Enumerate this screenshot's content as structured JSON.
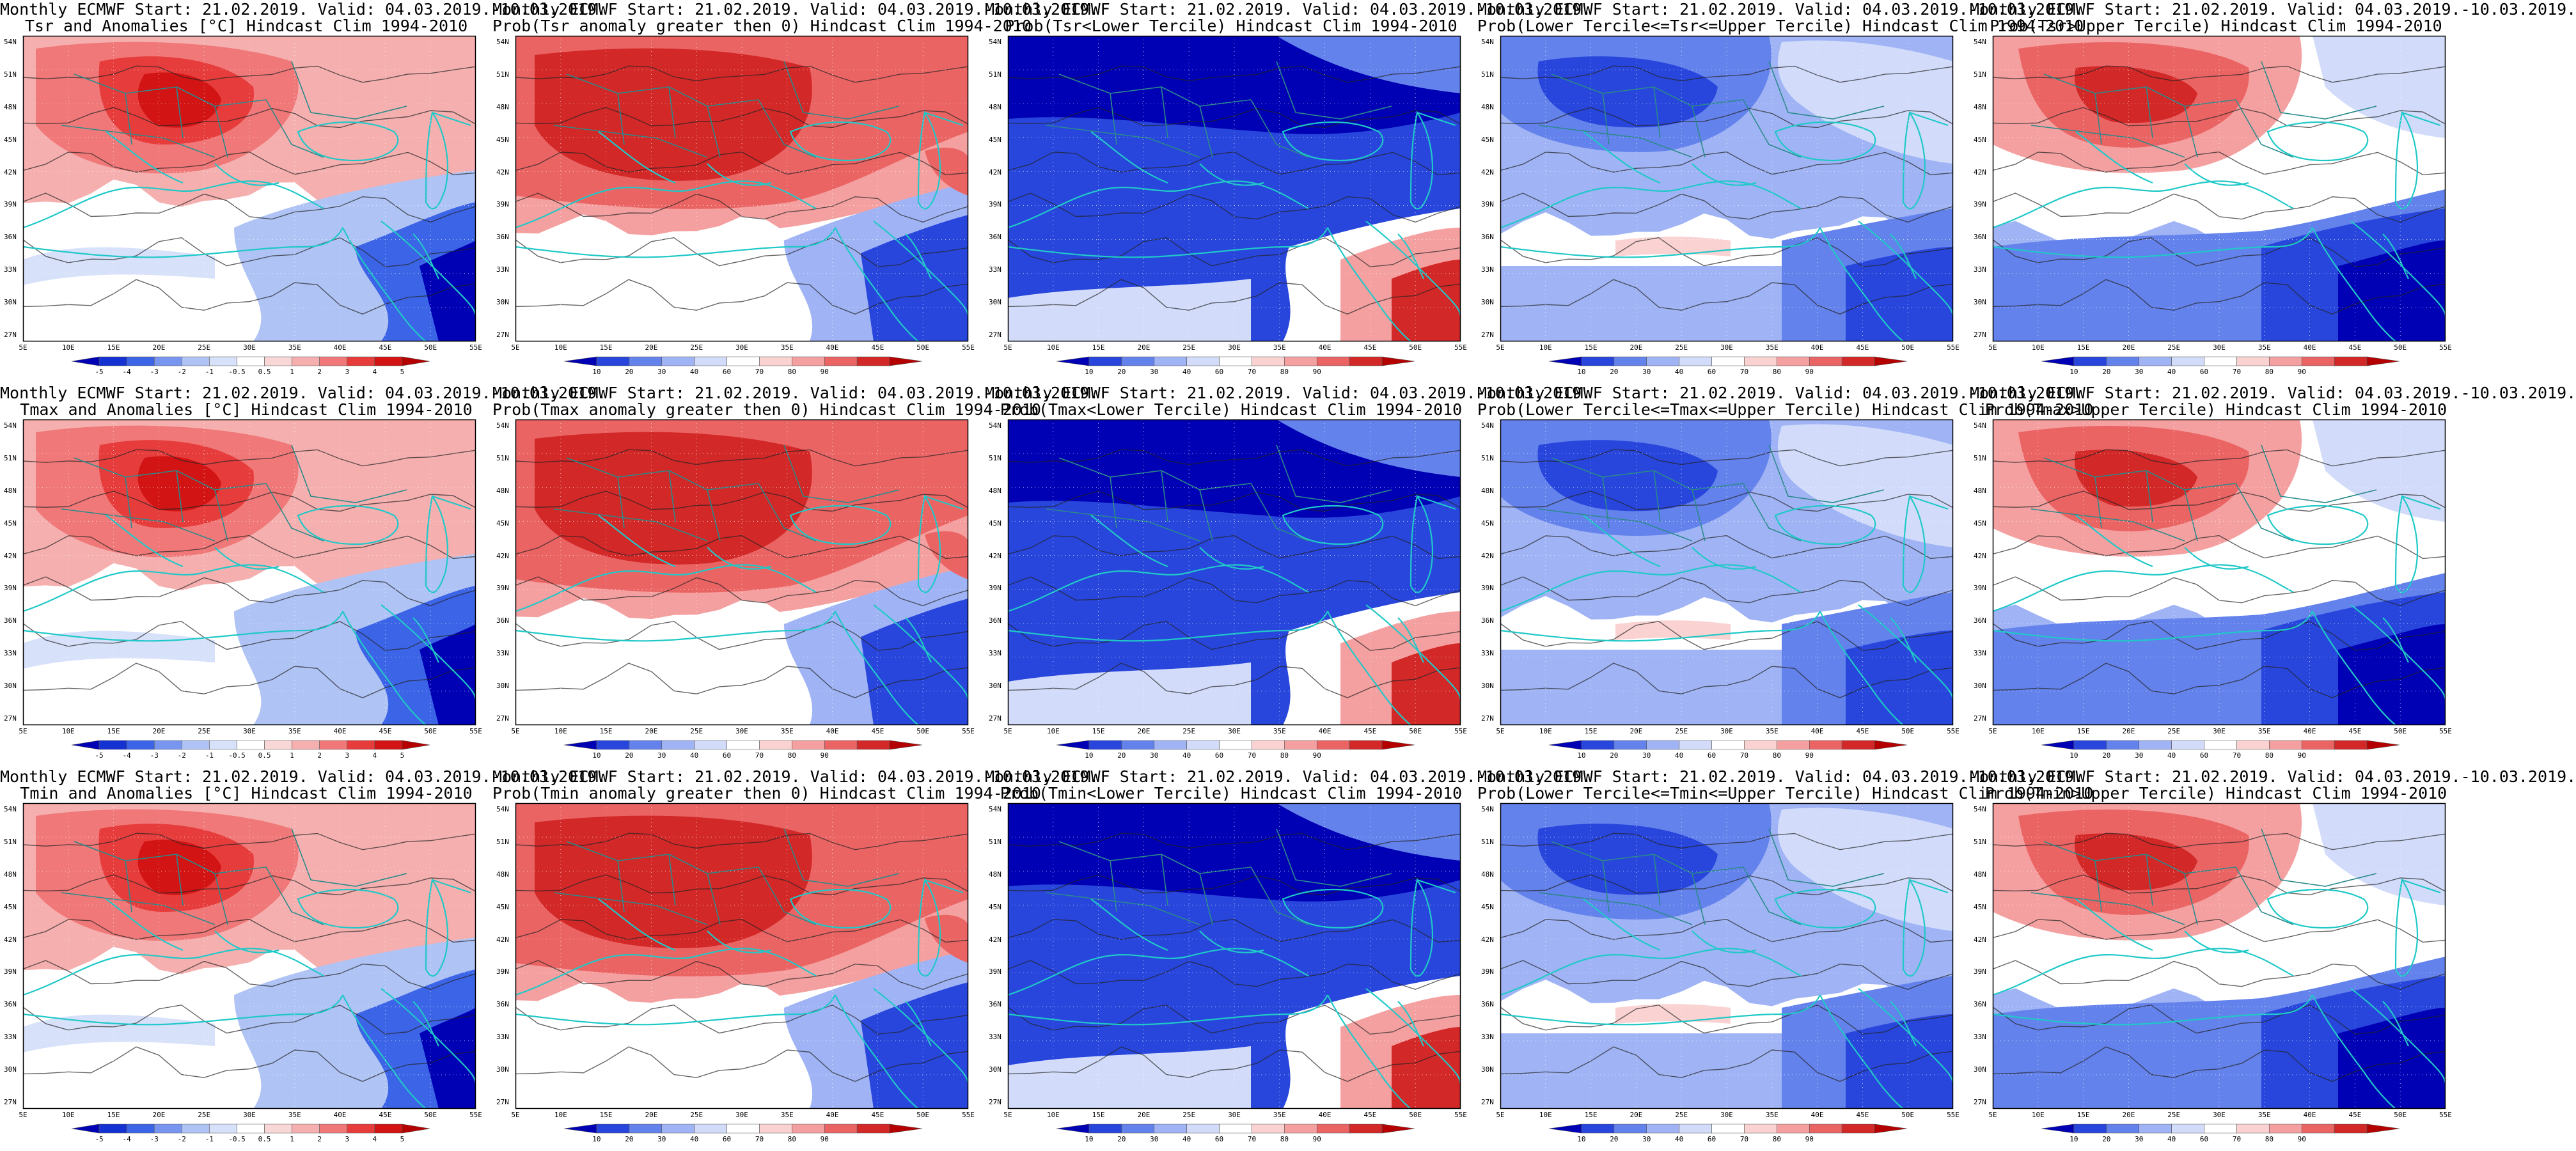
{
  "grid": {
    "rows": 3,
    "cols": 5
  },
  "title_line1": "Monthly ECMWF Start: 21.02.2019. Valid: 04.03.2019.-10.03.2019.",
  "colors": {
    "anom_scale": [
      "#0000b4",
      "#1432d2",
      "#3c64e6",
      "#7896f0",
      "#afc3f5",
      "#d7e1fa",
      "#ffffff",
      "#fad7d7",
      "#f5afaf",
      "#f07878",
      "#e63c3c",
      "#d21414",
      "#b40000"
    ],
    "prob_scale": [
      "#0000b4",
      "#2846dc",
      "#6482eb",
      "#a0b4f5",
      "#d2dcfa",
      "#ffffff",
      "#fad2d2",
      "#f5a0a0",
      "#eb6464",
      "#d22828",
      "#b40000"
    ],
    "coast": "#20c8c8",
    "contour": "#222222",
    "border": "#2a8a8a"
  },
  "colorbars": {
    "anom": [
      "-5",
      "-4",
      "-3",
      "-2",
      "-1",
      "-0.5",
      "0.5",
      "1",
      "2",
      "3",
      "4",
      "5"
    ],
    "prob": [
      "10",
      "20",
      "30",
      "40",
      "60",
      "70",
      "80",
      "90"
    ]
  },
  "axes": {
    "x_ticks": [
      "5E",
      "10E",
      "15E",
      "20E",
      "25E",
      "30E",
      "35E",
      "40E",
      "45E",
      "50E",
      "55E"
    ],
    "y_ticks": [
      "54N",
      "51N",
      "48N",
      "45N",
      "42N",
      "39N",
      "36N",
      "33N",
      "30N",
      "27N"
    ]
  },
  "panels": [
    {
      "line2": "Tsr and Anomalies [°C] Hindcast Clim 1994-2010",
      "kind": "anom",
      "pattern": "warmnorth"
    },
    {
      "line2": "Prob(Tsr anomaly greater then 0) Hindcast Clim 1994-2010",
      "kind": "prob",
      "pattern": "hotnorth"
    },
    {
      "line2": "Prob(Tsr<Lower Tercile) Hindcast Clim 1994-2010",
      "kind": "prob",
      "pattern": "lower"
    },
    {
      "line2": "Prob(Lower Tercile<=Tsr<=Upper Tercile) Hindcast Clim 1994-2010",
      "kind": "prob",
      "pattern": "middle"
    },
    {
      "line2": "Prob(Tsr>Upper Tercile) Hindcast Clim 1994-2010",
      "kind": "prob",
      "pattern": "upper"
    },
    {
      "line2": "Tmax and Anomalies [°C] Hindcast Clim 1994-2010",
      "kind": "anom",
      "pattern": "warmnorth"
    },
    {
      "line2": "Prob(Tmax anomaly greater then 0) Hindcast Clim 1994-2010",
      "kind": "prob",
      "pattern": "hotnorth"
    },
    {
      "line2": "Prob(Tmax<Lower Tercile) Hindcast Clim 1994-2010",
      "kind": "prob",
      "pattern": "lower"
    },
    {
      "line2": "Prob(Lower Tercile<=Tmax<=Upper Tercile) Hindcast Clim 1994-2010",
      "kind": "prob",
      "pattern": "middle"
    },
    {
      "line2": "Prob(Tmax>Upper Tercile) Hindcast Clim 1994-2010",
      "kind": "prob",
      "pattern": "upper"
    },
    {
      "line2": "Tmin and Anomalies [°C] Hindcast Clim 1994-2010",
      "kind": "anom",
      "pattern": "warmnorth"
    },
    {
      "line2": "Prob(Tmin anomaly greater then 0) Hindcast Clim 1994-2010",
      "kind": "prob",
      "pattern": "hotnorth"
    },
    {
      "line2": "Prob(Tmin<Lower Tercile) Hindcast Clim 1994-2010",
      "kind": "prob",
      "pattern": "lower"
    },
    {
      "line2": "Prob(Lower Tercile<=Tmin<=Upper Tercile) Hindcast Clim 1994-2010",
      "kind": "prob",
      "pattern": "middle"
    },
    {
      "line2": "Prob(Tmin>Upper Tercile) Hindcast Clim 1994-2010",
      "kind": "prob",
      "pattern": "upper"
    }
  ]
}
